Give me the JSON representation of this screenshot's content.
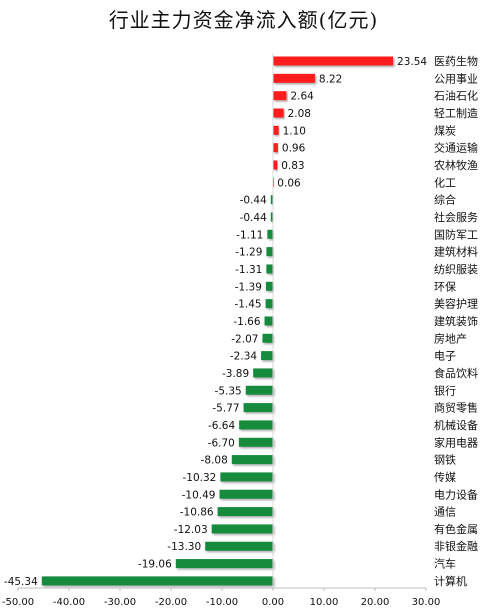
{
  "chart_data": {
    "type": "bar",
    "orientation": "horizontal",
    "title": "行业主力资金净流入额(亿元)",
    "xlabel": "",
    "ylabel": "",
    "xlim": [
      -50,
      30
    ],
    "x_ticks": [
      "-50.00",
      "-40.00",
      "-30.00",
      "-20.00",
      "-10.00",
      "0.00",
      "10.00",
      "20.00",
      "30.00"
    ],
    "grid": false,
    "legend": "none",
    "colors": {
      "positive": "#ff1a1a",
      "negative": "#128a3c"
    },
    "categories": [
      "医药生物",
      "公用事业",
      "石油石化",
      "轻工制造",
      "煤炭",
      "交通运输",
      "农林牧渔",
      "化工",
      "综合",
      "社会服务",
      "国防军工",
      "建筑材料",
      "纺织服装",
      "环保",
      "美容护理",
      "建筑装饰",
      "房地产",
      "电子",
      "食品饮料",
      "银行",
      "商贸零售",
      "机械设备",
      "家用电器",
      "钢铁",
      "传媒",
      "电力设备",
      "通信",
      "有色金属",
      "非银金融",
      "汽车",
      "计算机"
    ],
    "values": [
      23.54,
      8.22,
      2.64,
      2.08,
      1.1,
      0.96,
      0.83,
      0.06,
      -0.44,
      -0.44,
      -1.11,
      -1.29,
      -1.31,
      -1.39,
      -1.45,
      -1.66,
      -2.07,
      -2.34,
      -3.89,
      -5.35,
      -5.77,
      -6.64,
      -6.7,
      -8.08,
      -10.32,
      -10.49,
      -10.86,
      -12.03,
      -13.3,
      -19.06,
      -45.34
    ],
    "value_labels": [
      "23.54",
      "8.22",
      "2.64",
      "2.08",
      "1.10",
      "0.96",
      "0.83",
      "0.06",
      "-0.44",
      "-0.44",
      "-1.11",
      "-1.29",
      "-1.31",
      "-1.39",
      "-1.45",
      "-1.66",
      "-2.07",
      "-2.34",
      "-3.89",
      "-5.35",
      "-5.77",
      "-6.64",
      "-6.70",
      "-8.08",
      "-10.32",
      "-10.49",
      "-10.86",
      "-12.03",
      "-13.30",
      "-19.06",
      "-45.34"
    ]
  }
}
